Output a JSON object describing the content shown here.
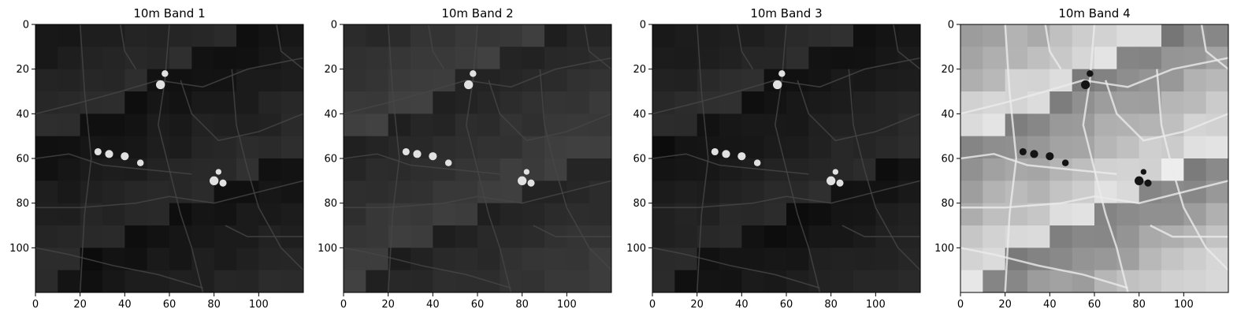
{
  "figure": {
    "background": "#ffffff",
    "colormap": "gray"
  },
  "chart_data": [
    {
      "type": "heatmap",
      "title": "10m Band 1",
      "colormap": "gray",
      "brightness": "dark",
      "xlim": [
        0,
        120
      ],
      "ylim": [
        120,
        0
      ],
      "xticks": [
        0,
        20,
        40,
        60,
        80,
        100
      ],
      "yticks": [
        0,
        20,
        40,
        60,
        80,
        100
      ],
      "grid": false
    },
    {
      "type": "heatmap",
      "title": "10m Band 2",
      "colormap": "gray",
      "brightness": "dark",
      "xlim": [
        0,
        120
      ],
      "ylim": [
        120,
        0
      ],
      "xticks": [
        0,
        20,
        40,
        60,
        80,
        100
      ],
      "yticks": [
        0,
        20,
        40,
        60,
        80,
        100
      ],
      "grid": false
    },
    {
      "type": "heatmap",
      "title": "10m Band 3",
      "colormap": "gray",
      "brightness": "dark",
      "xlim": [
        0,
        120
      ],
      "ylim": [
        120,
        0
      ],
      "xticks": [
        0,
        20,
        40,
        60,
        80,
        100
      ],
      "yticks": [
        0,
        20,
        40,
        60,
        80,
        100
      ],
      "grid": false
    },
    {
      "type": "heatmap",
      "title": "10m Band 4",
      "colormap": "gray",
      "brightness": "bright",
      "xlim": [
        0,
        120
      ],
      "ylim": [
        120,
        0
      ],
      "xticks": [
        0,
        20,
        40,
        60,
        80,
        100
      ],
      "yticks": [
        0,
        20,
        40,
        60,
        80,
        100
      ],
      "grid": false
    }
  ]
}
